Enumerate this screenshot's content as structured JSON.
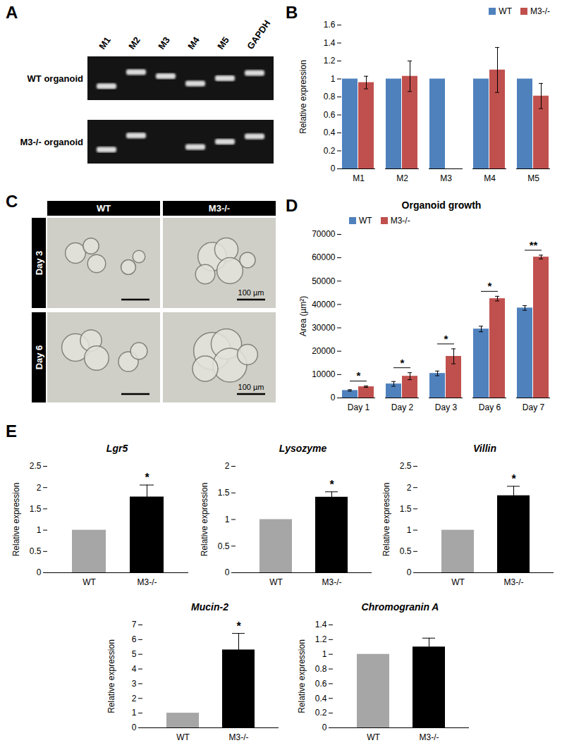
{
  "gel": {
    "panel": "A",
    "lanes": [
      "M1",
      "M2",
      "M3",
      "M4",
      "M5",
      "GAPDH"
    ],
    "rows": [
      {
        "label": "WT organoid",
        "bands": [
          true,
          true,
          true,
          true,
          true,
          true
        ]
      },
      {
        "label": "M3-/- organoid",
        "bands": [
          true,
          true,
          false,
          true,
          true,
          true
        ]
      }
    ]
  },
  "micrographs": {
    "panel": "C",
    "columns": [
      "WT",
      "M3-/-"
    ],
    "rows": [
      "Day 3",
      "Day 6"
    ],
    "scale_bar": "100 µm"
  },
  "chart_data": [
    {
      "panel": "B",
      "type": "bar",
      "categories": [
        "M1",
        "M2",
        "M3",
        "M4",
        "M5"
      ],
      "ylabel": "Relative expression",
      "ylim": [
        0,
        1.6
      ],
      "yticks": [
        0,
        0.2,
        0.4,
        0.6,
        0.8,
        1,
        1.2,
        1.4,
        1.6
      ],
      "legend": "top-right",
      "series": [
        {
          "name": "WT",
          "color": "#4f81bd",
          "values": [
            1,
            1,
            1,
            1,
            1
          ]
        },
        {
          "name": "M3-/-",
          "color": "#c0504d",
          "values": [
            0.96,
            1.03,
            null,
            1.1,
            0.81
          ],
          "errors": [
            0.07,
            0.17,
            null,
            0.25,
            0.14
          ]
        }
      ]
    },
    {
      "panel": "D",
      "type": "bar",
      "title": "Organoid growth",
      "categories": [
        "Day 1",
        "Day 2",
        "Day 3",
        "Day 6",
        "Day 7"
      ],
      "ylabel": "Area (µm²)",
      "ylim": [
        0,
        70000
      ],
      "yticks": [
        0,
        10000,
        20000,
        30000,
        40000,
        50000,
        60000,
        70000
      ],
      "legend": "top-left",
      "series": [
        {
          "name": "WT",
          "color": "#4f81bd",
          "values": [
            3200,
            6000,
            10500,
            29500,
            38500
          ],
          "errors": [
            300,
            1000,
            1000,
            1200,
            1000
          ]
        },
        {
          "name": "M3-/-",
          "color": "#c0504d",
          "values": [
            4800,
            9300,
            17800,
            42500,
            60300
          ],
          "errors": [
            300,
            1500,
            3200,
            1000,
            800
          ]
        }
      ],
      "significance": [
        "*",
        "*",
        "*",
        "*",
        "**"
      ]
    },
    {
      "panel": "E",
      "type": "bar",
      "title": "Lgr5",
      "categories": [
        "WT",
        "M3-/-"
      ],
      "ylabel": "Relative expression",
      "ylim": [
        0,
        2.5
      ],
      "yticks": [
        0,
        0.5,
        1,
        1.5,
        2,
        2.5
      ],
      "values": [
        1,
        1.78
      ],
      "errors": [
        null,
        0.28
      ],
      "colors": [
        "#a6a6a6",
        "#000000"
      ],
      "significance": [
        null,
        "*"
      ]
    },
    {
      "type": "bar",
      "title": "Lysozyme",
      "categories": [
        "WT",
        "M3-/-"
      ],
      "ylabel": "Relative expression",
      "ylim": [
        0,
        2
      ],
      "yticks": [
        0,
        0.5,
        1,
        1.5,
        2
      ],
      "values": [
        1,
        1.42
      ],
      "errors": [
        null,
        0.1
      ],
      "colors": [
        "#a6a6a6",
        "#000000"
      ],
      "significance": [
        null,
        "*"
      ]
    },
    {
      "type": "bar",
      "title": "Villin",
      "categories": [
        "WT",
        "M3-/-"
      ],
      "ylabel": "Relative expression",
      "ylim": [
        0,
        2.5
      ],
      "yticks": [
        0,
        0.5,
        1,
        1.5,
        2,
        2.5
      ],
      "values": [
        1,
        1.81
      ],
      "errors": [
        null,
        0.22
      ],
      "colors": [
        "#a6a6a6",
        "#000000"
      ],
      "significance": [
        null,
        "*"
      ]
    },
    {
      "type": "bar",
      "title": "Mucin-2",
      "categories": [
        "WT",
        "M3-/-"
      ],
      "ylabel": "Relative expression",
      "ylim": [
        0,
        7
      ],
      "yticks": [
        0,
        1,
        2,
        3,
        4,
        5,
        6,
        7
      ],
      "values": [
        1,
        5.3
      ],
      "errors": [
        null,
        1.12
      ],
      "colors": [
        "#a6a6a6",
        "#000000"
      ],
      "significance": [
        null,
        "*"
      ]
    },
    {
      "type": "bar",
      "title": "Chromogranin A",
      "categories": [
        "WT",
        "M3-/-"
      ],
      "ylabel": "Relative expression",
      "ylim": [
        0,
        1.4
      ],
      "yticks": [
        0,
        0.2,
        0.4,
        0.6,
        0.8,
        1,
        1.2,
        1.4
      ],
      "values": [
        1,
        1.1
      ],
      "errors": [
        null,
        0.12
      ],
      "colors": [
        "#a6a6a6",
        "#000000"
      ]
    }
  ]
}
